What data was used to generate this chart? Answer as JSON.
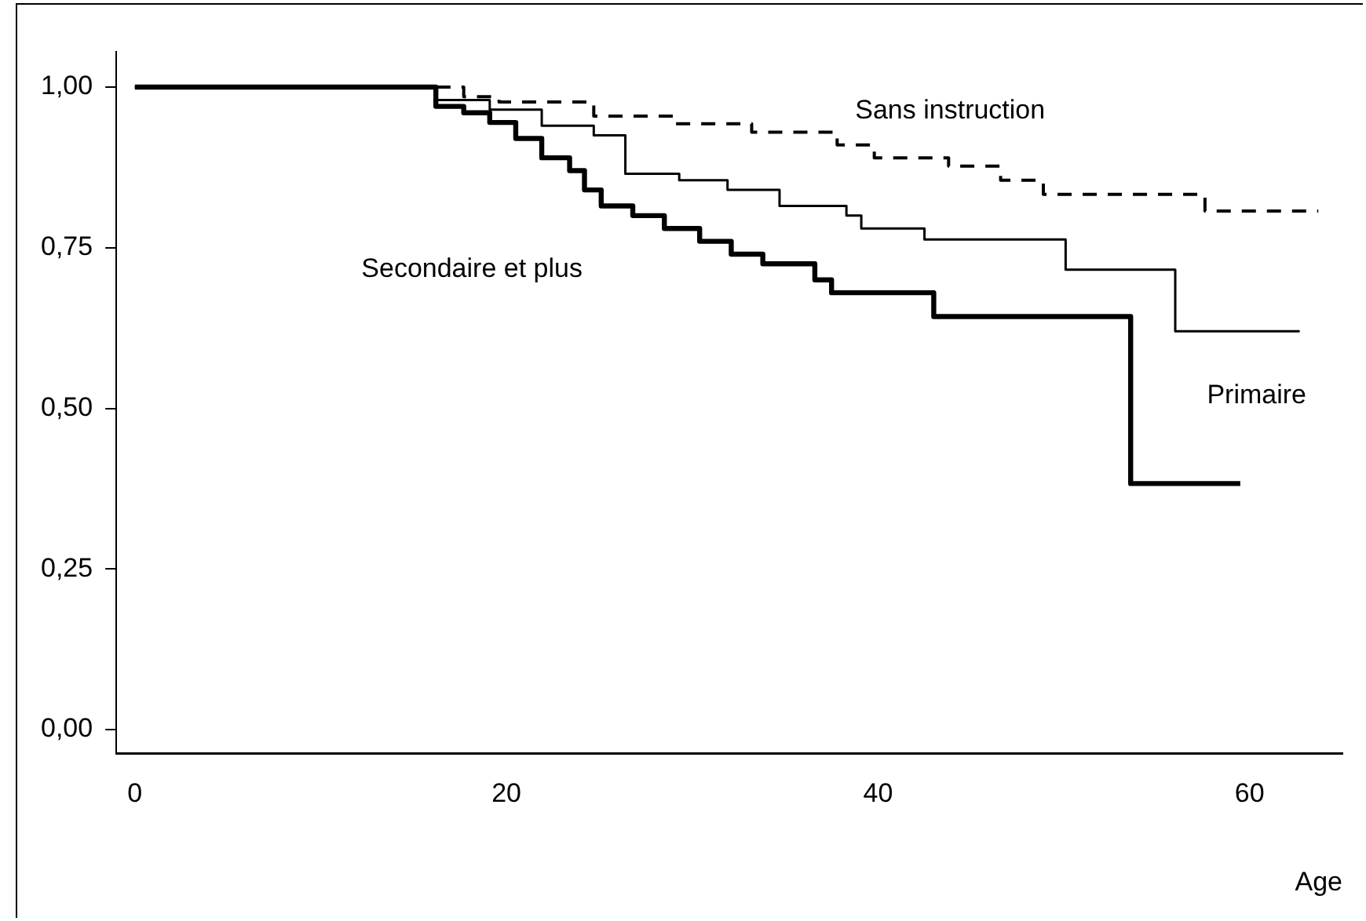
{
  "chart_data": {
    "type": "step",
    "xlabel": "Age",
    "xlim": [
      -1,
      65
    ],
    "xticks": [
      0,
      20,
      40,
      60
    ],
    "ylim": [
      -0.037,
      1.055
    ],
    "yticks": [
      {
        "value": 0,
        "label": "0,00"
      },
      {
        "value": 0.25,
        "label": "0,25"
      },
      {
        "value": 0.5,
        "label": "0,50"
      },
      {
        "value": 0.75,
        "label": "0,75"
      },
      {
        "value": 1,
        "label": "1,00"
      }
    ],
    "grid": false,
    "legend": false,
    "marker": "none",
    "series": [
      {
        "name": "Sans instruction",
        "color": "#000000",
        "line_style": "dashed",
        "x": [
          0,
          15.1,
          17.7,
          19.6,
          24.7,
          29,
          33.2,
          37.8,
          39.8,
          43.8,
          46.6,
          48.9,
          57.6,
          63.7
        ],
        "values": [
          1,
          1,
          0.985,
          0.977,
          0.955,
          0.943,
          0.93,
          0.91,
          0.89,
          0.877,
          0.855,
          0.833,
          0.807,
          0.807
        ]
      },
      {
        "name": "Primaire",
        "color": "#000000",
        "line_style": "solid",
        "x": [
          0,
          15.1,
          16.2,
          19.1,
          21.9,
          24.7,
          26.4,
          29.3,
          31.9,
          34.7,
          38.3,
          39.1,
          42.5,
          50.1,
          56,
          62.7
        ],
        "values": [
          1,
          1,
          0.98,
          0.965,
          0.94,
          0.925,
          0.865,
          0.855,
          0.84,
          0.815,
          0.8,
          0.78,
          0.763,
          0.716,
          0.62,
          0.62
        ]
      },
      {
        "name": "Secondaire et plus",
        "color": "#000000",
        "line_style": "solid",
        "x": [
          0,
          15.1,
          16.2,
          17.7,
          19.1,
          20.5,
          21.9,
          23.4,
          24.2,
          25.1,
          26.8,
          28.5,
          30.4,
          32.1,
          33.8,
          36.6,
          37.5,
          43,
          53.6,
          59.5
        ],
        "values": [
          1,
          1,
          0.97,
          0.96,
          0.945,
          0.92,
          0.89,
          0.87,
          0.84,
          0.815,
          0.8,
          0.78,
          0.76,
          0.74,
          0.725,
          0.7,
          0.68,
          0.643,
          0.383,
          0.383
        ]
      }
    ]
  }
}
